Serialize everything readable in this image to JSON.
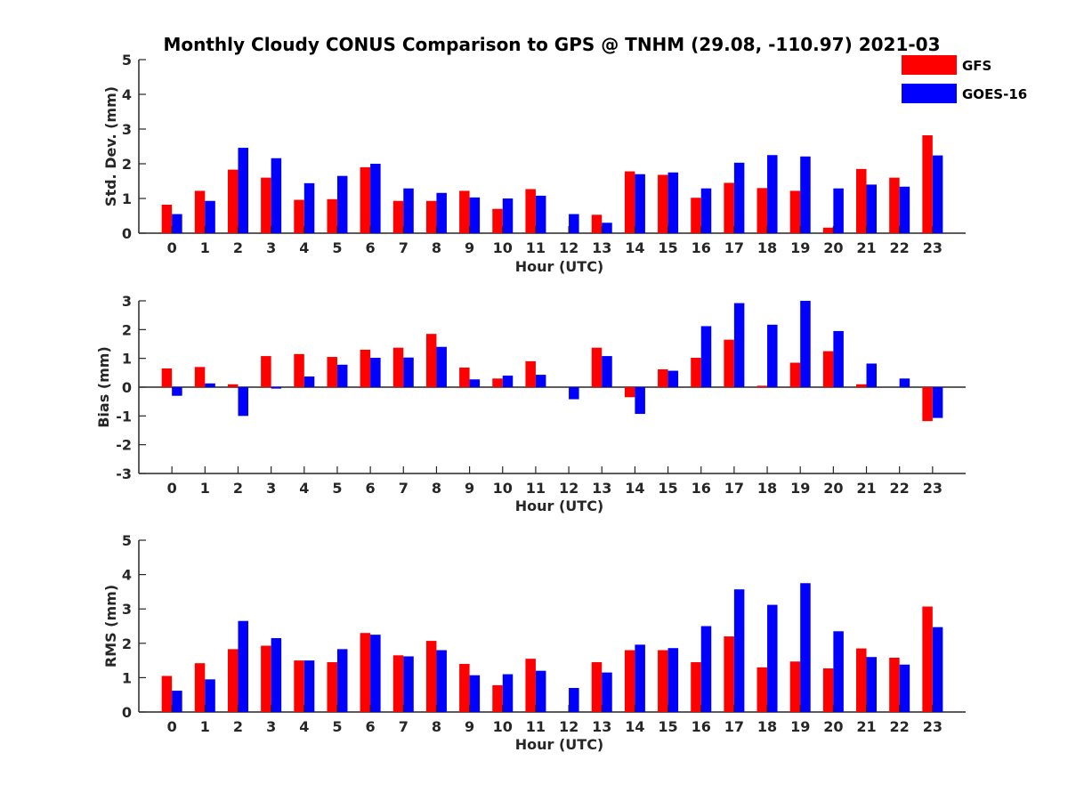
{
  "title": "Monthly Cloudy CONUS Comparison to GPS @ TNHM (29.08, -110.97) 2021-03",
  "legend": [
    {
      "name": "GFS",
      "color": "#ff0000"
    },
    {
      "name": "GOES-16",
      "color": "#0000ff"
    }
  ],
  "chart_data": [
    {
      "type": "bar",
      "xlabel": "Hour (UTC)",
      "ylabel": "Std. Dev. (mm)",
      "ylim": [
        0,
        5
      ],
      "yticks": [
        0,
        1,
        2,
        3,
        4,
        5
      ],
      "categories": [
        "0",
        "1",
        "2",
        "3",
        "4",
        "5",
        "6",
        "7",
        "8",
        "9",
        "10",
        "11",
        "12",
        "13",
        "14",
        "15",
        "16",
        "17",
        "18",
        "19",
        "20",
        "21",
        "22",
        "23"
      ],
      "series": [
        {
          "name": "GFS",
          "color": "#ff0000",
          "values": [
            0.82,
            1.22,
            1.83,
            1.6,
            0.96,
            0.98,
            1.9,
            0.93,
            0.93,
            1.22,
            0.7,
            1.27,
            null,
            0.53,
            1.78,
            1.68,
            1.02,
            1.45,
            1.3,
            1.22,
            0.16,
            1.85,
            1.6,
            2.82
          ]
        },
        {
          "name": "GOES-16",
          "color": "#0000ff",
          "values": [
            0.55,
            0.93,
            2.46,
            2.16,
            1.44,
            1.65,
            2.0,
            1.29,
            1.16,
            1.03,
            1.0,
            1.08,
            0.55,
            0.3,
            1.7,
            1.75,
            1.29,
            2.03,
            2.25,
            2.21,
            1.29,
            1.4,
            1.34,
            2.24
          ]
        }
      ]
    },
    {
      "type": "bar",
      "xlabel": "Hour (UTC)",
      "ylabel": "Bias (mm)",
      "ylim": [
        -3,
        3
      ],
      "yticks": [
        -3,
        -2,
        -1,
        0,
        1,
        2,
        3
      ],
      "categories": [
        "0",
        "1",
        "2",
        "3",
        "4",
        "5",
        "6",
        "7",
        "8",
        "9",
        "10",
        "11",
        "12",
        "13",
        "14",
        "15",
        "16",
        "17",
        "18",
        "19",
        "20",
        "21",
        "22",
        "23"
      ],
      "series": [
        {
          "name": "GFS",
          "color": "#ff0000",
          "values": [
            0.65,
            0.7,
            0.1,
            1.08,
            1.15,
            1.05,
            1.3,
            1.37,
            1.85,
            0.68,
            0.3,
            0.9,
            null,
            1.37,
            -0.35,
            0.62,
            1.02,
            1.65,
            0.05,
            0.85,
            1.25,
            0.1,
            null,
            -1.18
          ]
        },
        {
          "name": "GOES-16",
          "color": "#0000ff",
          "values": [
            -0.3,
            0.13,
            -1.0,
            -0.05,
            0.37,
            0.78,
            1.02,
            1.03,
            1.4,
            0.27,
            0.4,
            0.43,
            -0.42,
            1.08,
            -0.93,
            0.57,
            2.12,
            2.92,
            2.17,
            3.0,
            1.95,
            0.82,
            0.3,
            -1.07
          ]
        }
      ]
    },
    {
      "type": "bar",
      "xlabel": "Hour (UTC)",
      "ylabel": "RMS (mm)",
      "ylim": [
        0,
        5
      ],
      "yticks": [
        0,
        1,
        2,
        3,
        4,
        5
      ],
      "categories": [
        "0",
        "1",
        "2",
        "3",
        "4",
        "5",
        "6",
        "7",
        "8",
        "9",
        "10",
        "11",
        "12",
        "13",
        "14",
        "15",
        "16",
        "17",
        "18",
        "19",
        "20",
        "21",
        "22",
        "23"
      ],
      "series": [
        {
          "name": "GFS",
          "color": "#ff0000",
          "values": [
            1.05,
            1.42,
            1.83,
            1.93,
            1.5,
            1.45,
            2.3,
            1.65,
            2.07,
            1.4,
            0.78,
            1.55,
            null,
            1.45,
            1.8,
            1.8,
            1.45,
            2.2,
            1.3,
            1.47,
            1.27,
            1.85,
            1.58,
            3.07
          ]
        },
        {
          "name": "GOES-16",
          "color": "#0000ff",
          "values": [
            0.62,
            0.95,
            2.65,
            2.15,
            1.5,
            1.83,
            2.25,
            1.62,
            1.8,
            1.07,
            1.1,
            1.2,
            0.7,
            1.15,
            1.96,
            1.86,
            2.5,
            3.57,
            3.12,
            3.75,
            2.35,
            1.6,
            1.38,
            2.47
          ]
        }
      ]
    }
  ]
}
